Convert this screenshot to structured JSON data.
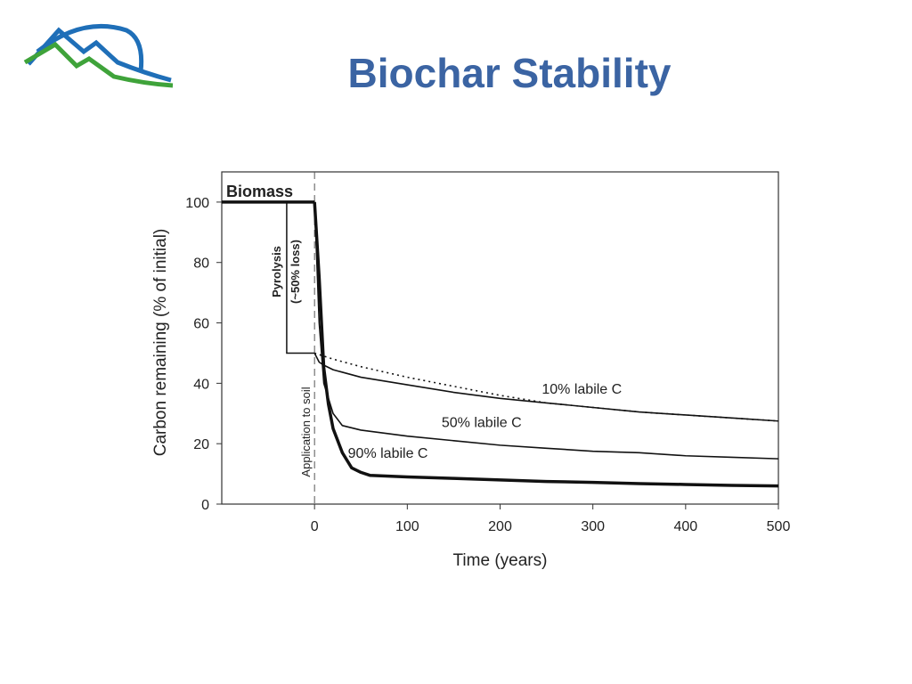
{
  "slide": {
    "title": "Biochar Stability"
  },
  "chart_data": {
    "type": "line",
    "title": "",
    "xlabel": "Time (years)",
    "ylabel": "Carbon remaining (% of initial)",
    "xlim": [
      -100,
      500
    ],
    "ylim": [
      0,
      110
    ],
    "xticks": [
      0,
      100,
      200,
      300,
      400,
      500
    ],
    "yticks": [
      0,
      20,
      40,
      60,
      80,
      100
    ],
    "grid": false,
    "legend": "none",
    "annotations": {
      "biomass": "Biomass",
      "pyrolysis": "Pyrolysis",
      "pyrolysis_loss": "(~50% loss)",
      "application": "Application to soil"
    },
    "biomass_phase": {
      "x": [
        -100,
        0
      ],
      "y": [
        100,
        100
      ]
    },
    "pyrolysis_phase": {
      "x": [
        -30,
        -30,
        0
      ],
      "y": [
        100,
        50,
        50
      ]
    },
    "series": [
      {
        "name": "10% labile C",
        "x": [
          0,
          5,
          10,
          20,
          50,
          100,
          150,
          200,
          250,
          300,
          350,
          400,
          450,
          500
        ],
        "y": [
          50,
          47,
          46,
          44.5,
          42,
          39.5,
          37,
          35,
          33.5,
          32,
          30.5,
          29.5,
          28.5,
          27.5
        ],
        "style": "solid-thin"
      },
      {
        "name": "50% labile C",
        "x": [
          0,
          5,
          10,
          20,
          30,
          50,
          100,
          150,
          200,
          250,
          300,
          350,
          400,
          450,
          500
        ],
        "y": [
          100,
          60,
          40,
          30,
          26,
          24.5,
          22.5,
          21,
          19.5,
          18.5,
          17.5,
          17,
          16,
          15.5,
          15
        ],
        "style": "solid-medium"
      },
      {
        "name": "90% labile C",
        "x": [
          0,
          5,
          10,
          15,
          20,
          30,
          40,
          50,
          60,
          100,
          150,
          200,
          250,
          300,
          350,
          400,
          450,
          500
        ],
        "y": [
          100,
          75,
          45,
          33,
          25,
          17,
          12,
          10.5,
          9.5,
          9,
          8.5,
          8,
          7.5,
          7.2,
          6.8,
          6.5,
          6.2,
          6
        ],
        "style": "solid-thick"
      },
      {
        "name": "",
        "x": [
          0,
          20,
          50,
          100,
          150,
          200,
          250,
          300,
          350,
          400,
          450,
          500
        ],
        "y": [
          50,
          48,
          45.5,
          42,
          39,
          36,
          33.5,
          32,
          30.5,
          29.5,
          28.5,
          27.5
        ],
        "style": "dotted"
      }
    ]
  }
}
